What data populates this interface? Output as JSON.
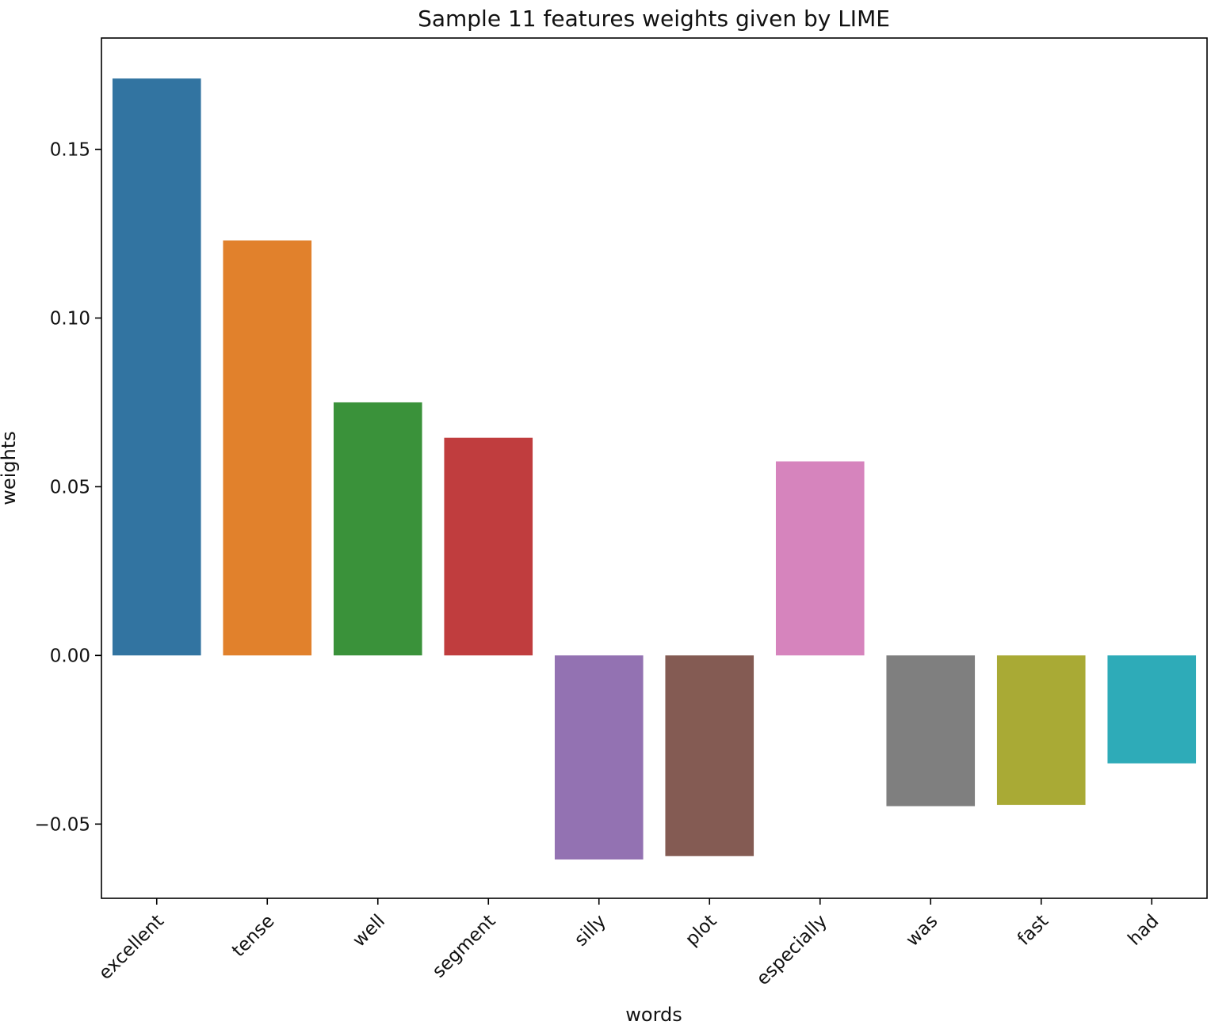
{
  "chart_data": {
    "type": "bar",
    "title": "Sample 11 features weights given by LIME",
    "xlabel": "words",
    "ylabel": "weights",
    "categories": [
      "excellent",
      "tense",
      "well",
      "segment",
      "silly",
      "plot",
      "especially",
      "was",
      "fast",
      "had"
    ],
    "values": [
      0.171,
      0.123,
      0.075,
      0.0645,
      -0.0605,
      -0.0595,
      0.0575,
      -0.0447,
      -0.0443,
      -0.032
    ],
    "colors": [
      "#3274a1",
      "#e1812c",
      "#3a923a",
      "#c03d3e",
      "#9372b2",
      "#845b53",
      "#d684bd",
      "#7f7f7f",
      "#a9aa35",
      "#2eabb8"
    ],
    "ylim": [
      -0.072,
      0.183
    ],
    "yticks": [
      -0.05,
      0.0,
      0.05,
      0.1,
      0.15
    ],
    "ytick_labels": [
      "−0.05",
      "0.00",
      "0.05",
      "0.10",
      "0.15"
    ],
    "grid": false,
    "legend": false
  }
}
